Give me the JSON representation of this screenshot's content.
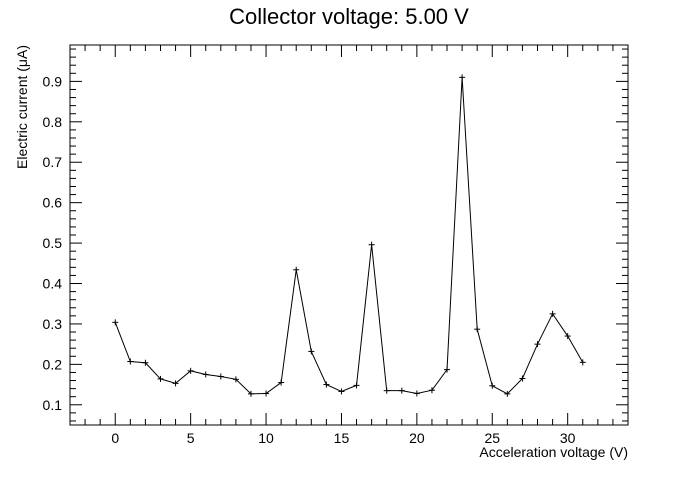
{
  "chart_data": {
    "type": "line",
    "title": "Collector voltage: 5.00 V",
    "xlabel": "Acceleration voltage (V)",
    "ylabel": "Electric current (μA)",
    "xlim": [
      -3,
      34
    ],
    "ylim": [
      0.05,
      0.99
    ],
    "x_ticks": [
      0,
      5,
      10,
      15,
      20,
      25,
      30
    ],
    "x_tick_labels": [
      "0",
      "5",
      "10",
      "15",
      "20",
      "25",
      "30"
    ],
    "y_ticks": [
      0.1,
      0.2,
      0.3,
      0.4,
      0.5,
      0.6,
      0.7,
      0.8,
      0.9
    ],
    "y_tick_labels": [
      "0.1",
      "0.2",
      "0.3",
      "0.4",
      "0.5",
      "0.6",
      "0.7",
      "0.8",
      "0.9"
    ],
    "grid": false,
    "legend": "none",
    "marker": "plus",
    "line_color": "#000000",
    "series": [
      {
        "x": [
          0,
          1,
          2,
          3,
          4,
          5,
          6,
          7,
          8,
          9,
          10,
          11,
          12,
          13,
          14,
          15,
          16,
          17,
          18,
          19,
          20,
          21,
          22,
          23,
          24,
          25,
          26,
          27,
          28,
          29,
          30,
          31
        ],
        "y": [
          0.304,
          0.207,
          0.204,
          0.164,
          0.153,
          0.184,
          0.175,
          0.17,
          0.163,
          0.127,
          0.128,
          0.155,
          0.434,
          0.232,
          0.15,
          0.133,
          0.148,
          0.496,
          0.135,
          0.135,
          0.128,
          0.136,
          0.187,
          0.91,
          0.287,
          0.147,
          0.127,
          0.165,
          0.25,
          0.325,
          0.27,
          0.205
        ]
      }
    ]
  }
}
